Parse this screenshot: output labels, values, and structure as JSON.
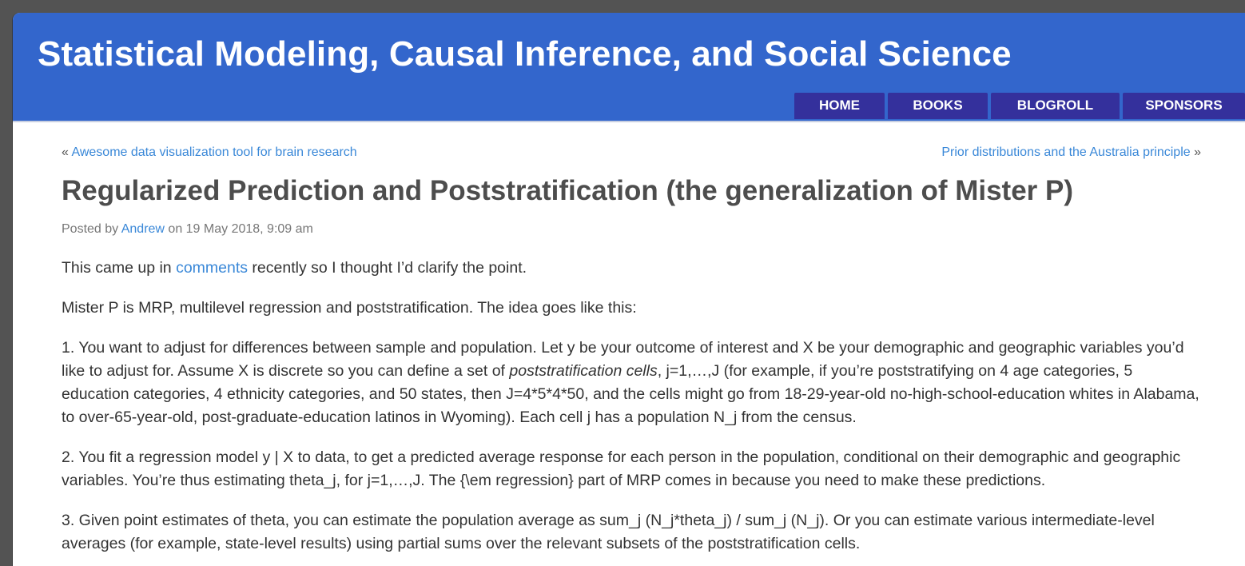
{
  "site": {
    "title": "Statistical Modeling, Causal Inference, and Social Science"
  },
  "nav": {
    "items": [
      {
        "label": "HOME"
      },
      {
        "label": "BOOKS"
      },
      {
        "label": "BLOGROLL"
      },
      {
        "label": "SPONSORS"
      }
    ]
  },
  "post_nav": {
    "prev_arrow": "« ",
    "prev_label": "Awesome data visualization tool for brain research",
    "next_label": "Prior distributions and the Australia principle",
    "next_arrow": " »"
  },
  "post": {
    "title": "Regularized Prediction and Poststratification (the generalization of Mister P)",
    "meta": {
      "posted_by": "Posted by ",
      "author": "Andrew",
      "on": " on 19 May 2018, 9:09 am"
    },
    "p1": {
      "before": "This came up in ",
      "link": "comments",
      "after": " recently so I thought I’d clarify the point."
    },
    "p2": "Mister P is MRP, multilevel regression and poststratification. The idea goes like this:",
    "p3": {
      "before": "1. You want to adjust for differences between sample and population. Let y be your outcome of interest and X be your demographic and geographic variables you’d like to adjust for. Assume X is discrete so you can define a set of ",
      "em": "poststratification cells",
      "after": ", j=1,…,J (for example, if you’re poststratifying on 4 age categories, 5 education categories, 4 ethnicity categories, and 50 states, then J=4*5*4*50, and the cells might go from 18-29-year-old no-high-school-education whites in Alabama, to over-65-year-old, post-graduate-education latinos in Wyoming). Each cell j has a population N_j from the census."
    },
    "p4": "2. You fit a regression model y | X to data, to get a predicted average response for each person in the population, conditional on their demographic and geographic variables. You’re thus estimating theta_j, for j=1,…,J. The {\\em regression} part of MRP comes in because you need to make these predictions.",
    "p5": "3. Given point estimates of theta, you can estimate the population average as sum_j (N_j*theta_j) / sum_j (N_j). Or you can estimate various intermediate-level averages (for example, state-level results) using partial sums over the relevant subsets of the poststratification cells."
  },
  "colors": {
    "header_bg": "#3366cc",
    "nav_bg": "#34309c",
    "link": "#3a88d8",
    "title_text": "#4d4d4d"
  }
}
